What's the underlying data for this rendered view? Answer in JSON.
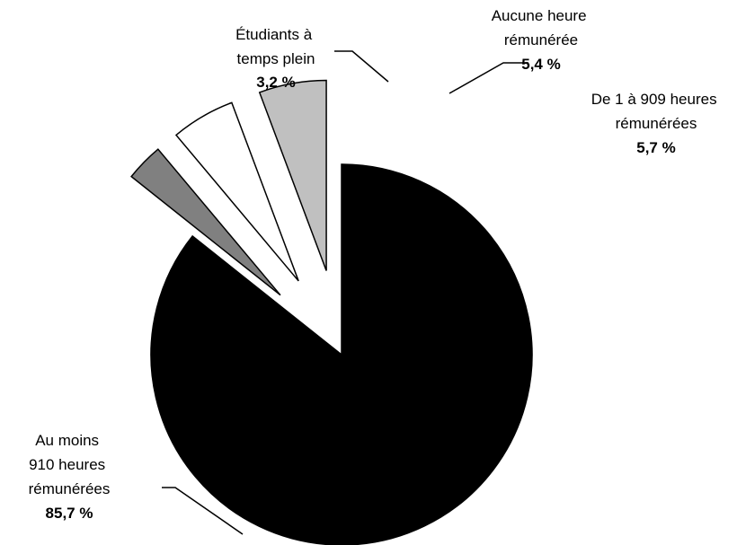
{
  "chart_data": {
    "type": "pie",
    "title": "",
    "slices": [
      {
        "label_lines": [
          "Au moins",
          "910 heures",
          "rémunérées"
        ],
        "value": 85.7,
        "value_label": "85,7 %",
        "color": "#000000"
      },
      {
        "label_lines": [
          "Étudiants à",
          "temps plein"
        ],
        "value": 3.2,
        "value_label": "3,2 %",
        "color": "#808080"
      },
      {
        "label_lines": [
          "Aucune heure",
          "rémunérée"
        ],
        "value": 5.4,
        "value_label": "5,4 %",
        "color": "#ffffff"
      },
      {
        "label_lines": [
          "De 1 à 909 heures",
          "rémunérées"
        ],
        "value": 5.7,
        "value_label": "5,7 %",
        "color": "#c0c0c0"
      }
    ]
  }
}
